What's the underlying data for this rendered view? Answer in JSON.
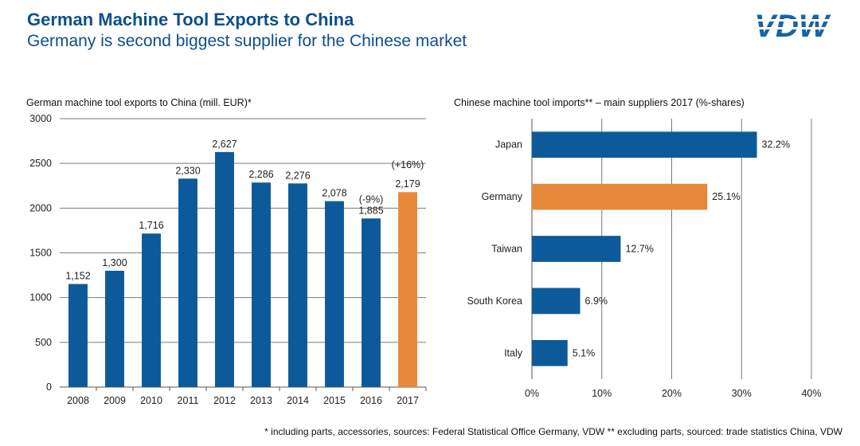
{
  "header": {
    "title": "German Machine Tool Exports to China",
    "subtitle": "Germany is second biggest supplier for the Chinese market",
    "logo": "VDW"
  },
  "colors": {
    "blue": "#0d5a9a",
    "orange": "#e8893a",
    "title": "#0d4f8b"
  },
  "chart_data": [
    {
      "type": "bar",
      "title": "German machine tool exports to China (mill. EUR)*",
      "categories": [
        "2008",
        "2009",
        "2010",
        "2011",
        "2012",
        "2013",
        "2014",
        "2015",
        "2016",
        "2017"
      ],
      "values": [
        1152,
        1300,
        1716,
        2330,
        2627,
        2286,
        2276,
        2078,
        1885,
        2179
      ],
      "value_labels": [
        "1,152",
        "1,300",
        "1,716",
        "2,330",
        "2,627",
        "2,286",
        "2,276",
        "2,078",
        "1,885",
        "2,179"
      ],
      "highlight_index": 9,
      "annotations": [
        {
          "category_index": 8,
          "text": "(-9%)"
        },
        {
          "category_index": 9,
          "text": "(+16%)"
        }
      ],
      "ylim": [
        0,
        3000
      ],
      "yticks": [
        0,
        500,
        1000,
        1500,
        2000,
        2500,
        3000
      ],
      "xlabel": "",
      "ylabel": "",
      "grid": true
    },
    {
      "type": "bar",
      "orientation": "horizontal",
      "title": "Chinese machine tool imports**  – main suppliers 2017 (%-shares)",
      "categories": [
        "Japan",
        "Germany",
        "Taiwan",
        "South Korea",
        "Italy"
      ],
      "values": [
        32.2,
        25.1,
        12.7,
        6.9,
        5.1
      ],
      "value_labels": [
        "32.2%",
        "25.1%",
        "12.7%",
        "6.9%",
        "5.1%"
      ],
      "highlight_index": 1,
      "xlim": [
        0,
        40
      ],
      "xticks": [
        0,
        10,
        20,
        30,
        40
      ],
      "xtick_labels": [
        "0%",
        "10%",
        "20%",
        "30%",
        "40%"
      ],
      "grid": true
    }
  ],
  "footer": {
    "note": "* including parts, accessories, sources: Federal Statistical Office Germany, VDW  ** excluding parts, sourced: trade statistics China, VDW"
  }
}
